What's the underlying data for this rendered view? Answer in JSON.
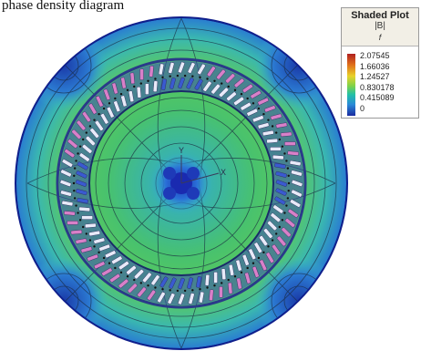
{
  "caption": "phase density diagram",
  "legend": {
    "title": "Shaded Plot",
    "quantity": "|B|",
    "subtitle": "f",
    "ticks": [
      "2.07545",
      "1.66036",
      "1.24527",
      "0.830178",
      "0.415089",
      "0"
    ],
    "colors": {
      "high": "#b02020",
      "mid": "#7ed24a",
      "low": "#1a2aa0"
    }
  },
  "axes": {
    "y_label": "Y",
    "x_label": "X"
  },
  "colors": {
    "outer_field": "#3fb6c2",
    "mid_field": "#49c27a",
    "low_field": "#2e7fd0",
    "rim": "#0f1f8c",
    "coil_pink": "#d880c8",
    "coil_white": "#e8eaf8",
    "coil_blue": "#3a5ad0"
  }
}
